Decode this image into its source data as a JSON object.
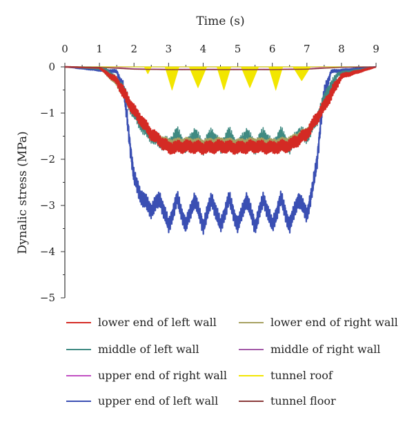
{
  "chart_data": {
    "type": "line",
    "title": "",
    "xlabel": "Time (s)",
    "ylabel": "Dynalic stress (MPa)",
    "xlim": [
      0,
      9
    ],
    "ylim": [
      -5,
      0
    ],
    "x_ticks": [
      0,
      1,
      2,
      3,
      4,
      5,
      6,
      7,
      8,
      9
    ],
    "y_ticks": [
      0,
      -1,
      -2,
      -3,
      -4,
      -5
    ],
    "x_tick_labels": [
      "0",
      "1",
      "2",
      "3",
      "4",
      "5",
      "6",
      "7",
      "8",
      "9"
    ],
    "y_tick_labels": [
      "0",
      "−1",
      "−2",
      "−3",
      "−4",
      "−5"
    ],
    "x_axis_position": "top",
    "grid": false,
    "legend_position": "bottom",
    "series": [
      {
        "name": "upper end of left wall",
        "color": "#3a4fb3",
        "x": [
          0,
          1.5,
          1.7,
          1.8,
          1.9,
          2.0,
          2.2,
          2.5,
          2.75,
          3.0,
          3.25,
          3.5,
          3.75,
          4.0,
          4.25,
          4.5,
          4.75,
          5.0,
          5.25,
          5.5,
          5.75,
          6.0,
          6.25,
          6.5,
          6.75,
          7.0,
          7.15,
          7.3,
          7.4,
          7.5,
          7.7,
          9
        ],
        "y": [
          0,
          -0.1,
          -0.5,
          -1.1,
          -1.8,
          -2.4,
          -2.8,
          -3.1,
          -2.85,
          -3.45,
          -2.85,
          -3.45,
          -2.85,
          -3.45,
          -2.85,
          -3.45,
          -2.85,
          -3.45,
          -2.85,
          -3.45,
          -2.85,
          -3.45,
          -2.85,
          -3.45,
          -2.85,
          -3.2,
          -2.7,
          -2.0,
          -1.2,
          -0.6,
          -0.1,
          0
        ]
      },
      {
        "name": "middle of left wall",
        "color": "#3f8a82",
        "x": [
          0,
          1.2,
          1.6,
          2.0,
          2.3,
          2.6,
          3.0,
          3.25,
          3.5,
          3.75,
          4.0,
          4.25,
          4.5,
          4.75,
          5.0,
          5.25,
          5.5,
          5.75,
          6.0,
          6.25,
          6.5,
          6.75,
          7.0,
          7.3,
          7.6,
          7.9,
          9
        ],
        "y": [
          0,
          -0.05,
          -0.4,
          -1.0,
          -1.35,
          -1.55,
          -1.7,
          -1.45,
          -1.75,
          -1.45,
          -1.75,
          -1.45,
          -1.75,
          -1.45,
          -1.75,
          -1.45,
          -1.75,
          -1.45,
          -1.75,
          -1.45,
          -1.75,
          -1.45,
          -1.5,
          -1.1,
          -0.55,
          -0.15,
          0
        ]
      },
      {
        "name": "lower end of right wall",
        "color": "#a5a060",
        "x": [
          0,
          1.0,
          1.5,
          2.0,
          2.5,
          3.0,
          3.5,
          4.0,
          4.5,
          5.0,
          5.5,
          6.0,
          6.5,
          7.0,
          7.5,
          8.0,
          9
        ],
        "y": [
          0,
          -0.02,
          -0.35,
          -0.95,
          -1.45,
          -1.65,
          -1.62,
          -1.65,
          -1.62,
          -1.65,
          -1.62,
          -1.65,
          -1.6,
          -1.4,
          -0.85,
          -0.2,
          0
        ]
      },
      {
        "name": "lower end of left wall",
        "color": "#d42a24",
        "x": [
          0,
          1.0,
          1.5,
          2.0,
          2.5,
          3.0,
          3.5,
          4.0,
          4.5,
          5.0,
          5.5,
          6.0,
          6.5,
          7.0,
          7.5,
          8.0,
          9
        ],
        "y": [
          0,
          -0.02,
          -0.3,
          -0.95,
          -1.45,
          -1.75,
          -1.72,
          -1.75,
          -1.72,
          -1.75,
          -1.72,
          -1.75,
          -1.7,
          -1.45,
          -0.85,
          -0.2,
          0
        ]
      },
      {
        "name": "middle of right wall",
        "color": "#a259a8",
        "x": [
          0,
          1.5,
          2.0,
          3.0,
          4.0,
          5.0,
          6.0,
          7.0,
          7.5,
          9
        ],
        "y": [
          0,
          -0.01,
          -0.05,
          -0.06,
          -0.06,
          -0.06,
          -0.06,
          -0.05,
          -0.01,
          0
        ]
      },
      {
        "name": "upper end of right wall",
        "color": "#c04ec2",
        "x": [
          0,
          1.5,
          2.0,
          3.0,
          4.0,
          5.0,
          6.0,
          7.0,
          7.5,
          9
        ],
        "y": [
          0,
          -0.01,
          -0.04,
          -0.05,
          -0.05,
          -0.05,
          -0.05,
          -0.04,
          -0.01,
          0
        ]
      },
      {
        "name": "tunnel roof",
        "color": "#f2e600",
        "x": [
          0,
          2.3,
          2.4,
          2.5,
          2.9,
          3.1,
          3.3,
          3.6,
          3.85,
          4.1,
          4.4,
          4.6,
          4.8,
          5.1,
          5.35,
          5.6,
          5.9,
          6.1,
          6.3,
          6.6,
          6.85,
          7.1,
          9
        ],
        "y": [
          0,
          0,
          -0.15,
          0,
          0,
          -0.5,
          0,
          0,
          -0.45,
          0,
          0,
          -0.5,
          0,
          0,
          -0.45,
          0,
          0,
          -0.5,
          0,
          0,
          -0.3,
          0,
          0
        ]
      },
      {
        "name": "tunnel floor",
        "color": "#8a3a3a",
        "x": [
          0,
          1.0,
          1.5,
          2.0,
          3.0,
          4.0,
          5.0,
          6.0,
          7.0,
          7.5,
          8.0,
          9
        ],
        "y": [
          0,
          -0.01,
          -0.03,
          -0.05,
          -0.06,
          -0.06,
          -0.06,
          -0.06,
          -0.05,
          -0.03,
          -0.01,
          0
        ]
      }
    ],
    "legend_order": [
      "lower end of left wall",
      "lower end of right wall",
      "middle of left wall",
      "middle of right wall",
      "upper end of right wall",
      "tunnel roof",
      "upper end of left wall",
      "tunnel floor"
    ]
  }
}
